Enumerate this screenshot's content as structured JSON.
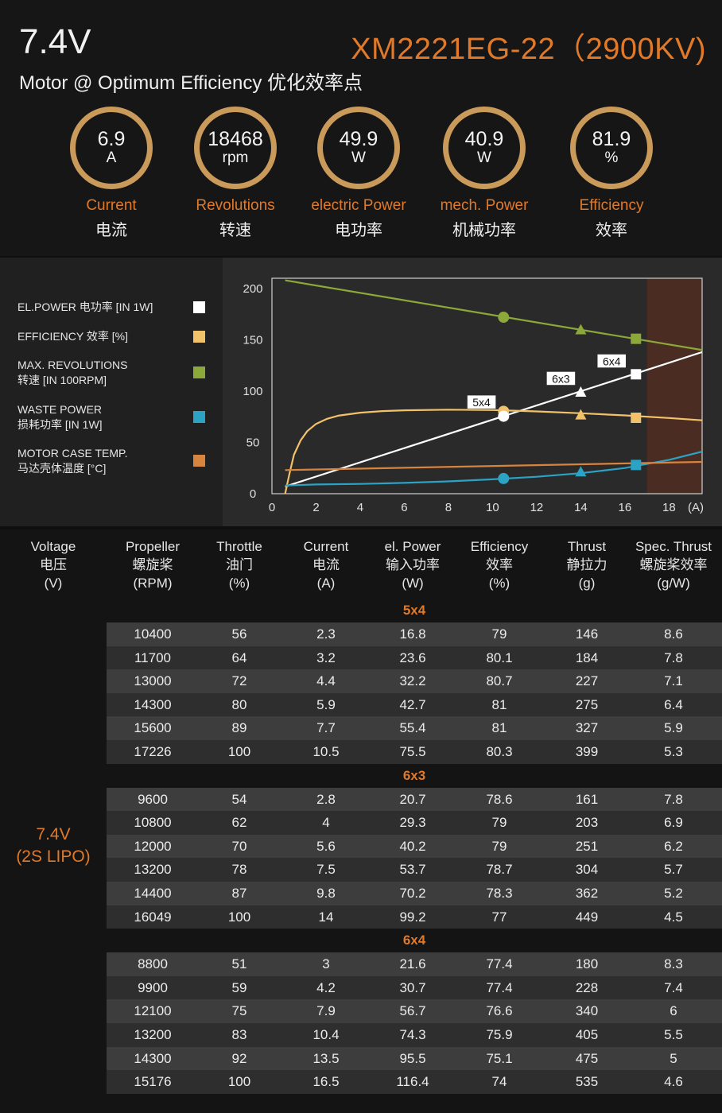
{
  "header": {
    "voltage": "7.4V",
    "model": "XM2221EG-22（2900KV)",
    "subtitle": "Motor @ Optimum Efficiency  优化效率点"
  },
  "metrics": [
    {
      "value": "6.9",
      "unit": "A",
      "en": "Current",
      "cn": "电流"
    },
    {
      "value": "18468",
      "unit": "rpm",
      "en": "Revolutions",
      "cn": "转速"
    },
    {
      "value": "49.9",
      "unit": "W",
      "en": "electric Power",
      "cn": "电功率"
    },
    {
      "value": "40.9",
      "unit": "W",
      "en": "mech. Power",
      "cn": "机械功率"
    },
    {
      "value": "81.9",
      "unit": "%",
      "en": "Efficiency",
      "cn": "效率"
    }
  ],
  "legend": [
    {
      "line1": "EL.POWER 电功率 [IN 1W]",
      "line2": "",
      "color": "#ffffff"
    },
    {
      "line1": "EFFICIENCY 效率 [%]",
      "line2": "",
      "color": "#f2c26a"
    },
    {
      "line1": "MAX. REVOLUTIONS",
      "line2": "转速 [IN 100RPM]",
      "color": "#8ca83a"
    },
    {
      "line1": "WASTE POWER",
      "line2": "损耗功率 [IN 1W]",
      "color": "#2ba3c4"
    },
    {
      "line1": "MOTOR CASE TEMP.",
      "line2": "马达壳体温度 [°C]",
      "color": "#d6843e"
    }
  ],
  "chart_data": {
    "type": "line",
    "xlabel": "(A)",
    "xlim": [
      0,
      19.5
    ],
    "ylim": [
      0,
      210
    ],
    "x_ticks": [
      0,
      2,
      4,
      6,
      8,
      10,
      12,
      14,
      16,
      18
    ],
    "y_ticks": [
      0,
      50,
      100,
      150,
      200
    ],
    "shaded_region_x": [
      17,
      19.5
    ],
    "series": [
      {
        "name": "EL.POWER",
        "color": "#ffffff",
        "x": [
          0.6,
          19.5
        ],
        "y": [
          7,
          138
        ]
      },
      {
        "name": "EFFICIENCY",
        "color": "#f2c26a",
        "x": [
          0.6,
          0.8,
          1.0,
          1.3,
          1.6,
          2.0,
          2.5,
          3.0,
          4.0,
          5.0,
          6.0,
          8.0,
          10.0,
          12.0,
          14.0,
          16.0,
          18.0,
          19.5
        ],
        "y": [
          0,
          20,
          38,
          52,
          61,
          68,
          73,
          76,
          79,
          80.5,
          81.3,
          81.9,
          81.5,
          80.2,
          78.4,
          76.3,
          73.8,
          71.5
        ]
      },
      {
        "name": "MAX. REVOLUTIONS",
        "color": "#8ca83a",
        "x": [
          0.6,
          19.5
        ],
        "y": [
          208,
          140
        ]
      },
      {
        "name": "WASTE POWER",
        "color": "#2ba3c4",
        "x": [
          0.6,
          2,
          4,
          6,
          8,
          10,
          12,
          14,
          16,
          18,
          19.5
        ],
        "y": [
          8,
          9,
          9.5,
          10.5,
          12,
          14,
          16.5,
          20,
          25,
          33,
          41
        ]
      },
      {
        "name": "MOTOR CASE TEMP.",
        "color": "#d6843e",
        "x": [
          0.6,
          19.5
        ],
        "y": [
          23,
          31
        ]
      }
    ],
    "markers": [
      {
        "prop": "5x4",
        "shape": "circle",
        "x": 10.5,
        "values": {
          "revolutions": 172,
          "efficiency": 80.3,
          "el_power": 75.5,
          "waste_power": 14.8
        }
      },
      {
        "prop": "6x3",
        "shape": "triangle",
        "x": 14,
        "values": {
          "revolutions": 160,
          "efficiency": 77,
          "el_power": 99.2,
          "waste_power": 21.5
        }
      },
      {
        "prop": "6x4",
        "shape": "square",
        "x": 16.5,
        "values": {
          "revolutions": 151,
          "efficiency": 74,
          "el_power": 116.4,
          "waste_power": 28
        }
      }
    ],
    "marker_labels": [
      {
        "text": "5x4",
        "x": 9.5,
        "y": 89
      },
      {
        "text": "6x3",
        "x": 13.1,
        "y": 112
      },
      {
        "text": "6x4",
        "x": 15.4,
        "y": 129
      }
    ]
  },
  "table": {
    "headers": [
      {
        "en": "Voltage",
        "cn": "电压",
        "unit": "(V)"
      },
      {
        "en": "Propeller",
        "cn": "螺旋桨",
        "unit": "(RPM)"
      },
      {
        "en": "Throttle",
        "cn": "油门",
        "unit": "(%)"
      },
      {
        "en": "Current",
        "cn": "电流",
        "unit": "(A)"
      },
      {
        "en": "el. Power",
        "cn": "输入功率",
        "unit": "(W)"
      },
      {
        "en": "Efficiency",
        "cn": "效率",
        "unit": "(%)"
      },
      {
        "en": "Thrust",
        "cn": "静拉力",
        "unit": "(g)"
      },
      {
        "en": "Spec. Thrust",
        "cn": "螺旋桨效率",
        "unit": "(g/W)"
      }
    ],
    "voltage_label_1": "7.4V",
    "voltage_label_2": "(2S LIPO)",
    "groups": [
      {
        "name": "5x4",
        "rows": [
          [
            "10400",
            "56",
            "2.3",
            "16.8",
            "79",
            "146",
            "8.6"
          ],
          [
            "11700",
            "64",
            "3.2",
            "23.6",
            "80.1",
            "184",
            "7.8"
          ],
          [
            "13000",
            "72",
            "4.4",
            "32.2",
            "80.7",
            "227",
            "7.1"
          ],
          [
            "14300",
            "80",
            "5.9",
            "42.7",
            "81",
            "275",
            "6.4"
          ],
          [
            "15600",
            "89",
            "7.7",
            "55.4",
            "81",
            "327",
            "5.9"
          ],
          [
            "17226",
            "100",
            "10.5",
            "75.5",
            "80.3",
            "399",
            "5.3"
          ]
        ]
      },
      {
        "name": "6x3",
        "rows": [
          [
            "9600",
            "54",
            "2.8",
            "20.7",
            "78.6",
            "161",
            "7.8"
          ],
          [
            "10800",
            "62",
            "4",
            "29.3",
            "79",
            "203",
            "6.9"
          ],
          [
            "12000",
            "70",
            "5.6",
            "40.2",
            "79",
            "251",
            "6.2"
          ],
          [
            "13200",
            "78",
            "7.5",
            "53.7",
            "78.7",
            "304",
            "5.7"
          ],
          [
            "14400",
            "87",
            "9.8",
            "70.2",
            "78.3",
            "362",
            "5.2"
          ],
          [
            "16049",
            "100",
            "14",
            "99.2",
            "77",
            "449",
            "4.5"
          ]
        ]
      },
      {
        "name": "6x4",
        "rows": [
          [
            "8800",
            "51",
            "3",
            "21.6",
            "77.4",
            "180",
            "8.3"
          ],
          [
            "9900",
            "59",
            "4.2",
            "30.7",
            "77.4",
            "228",
            "7.4"
          ],
          [
            "12100",
            "75",
            "7.9",
            "56.7",
            "76.6",
            "340",
            "6"
          ],
          [
            "13200",
            "83",
            "10.4",
            "74.3",
            "75.9",
            "405",
            "5.5"
          ],
          [
            "14300",
            "92",
            "13.5",
            "95.5",
            "75.1",
            "475",
            "5"
          ],
          [
            "15176",
            "100",
            "16.5",
            "116.4",
            "74",
            "535",
            "4.6"
          ]
        ]
      }
    ]
  }
}
